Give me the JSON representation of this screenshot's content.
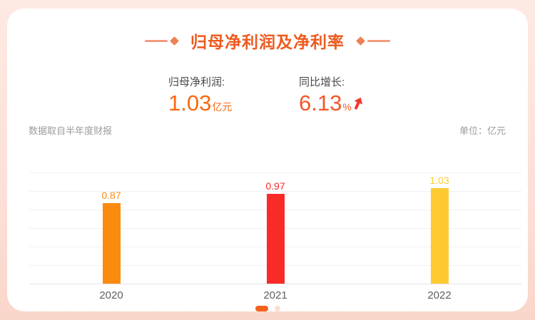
{
  "page": {
    "bg_top_color": "#fdeae3",
    "bg_bottom_color": "#f9d6ca",
    "card_color": "#ffffff"
  },
  "header": {
    "title": "归母净利润及净利率",
    "title_color": "#ee5a1e",
    "decoration_line_color": "#f29c7d",
    "decoration_diamond_color": "#ef7f55"
  },
  "stats": [
    {
      "label": "归母净利润:",
      "value": "1.03",
      "unit": "亿元",
      "value_color": "#f9690f"
    },
    {
      "label": "同比增长:",
      "value": "6.13",
      "unit": "%",
      "value_color": "#f4562a",
      "trend": "up",
      "arrow_color": "#f0382a"
    }
  ],
  "meta": {
    "source_note": "数据取自半年度财报",
    "unit_note": "单位：亿元"
  },
  "chart_data": {
    "type": "bar",
    "title": "归母净利润及净利率",
    "categories": [
      "2020",
      "2021",
      "2022"
    ],
    "values": [
      0.87,
      0.97,
      1.03
    ],
    "bar_colors": [
      "#fb8b0c",
      "#f92b26",
      "#fdca32"
    ],
    "value_label_colors": [
      "#fb8b0c",
      "#f92b26",
      "#fdca32"
    ],
    "xlabel": "",
    "ylabel": "亿元",
    "ylim": [
      0,
      1.2
    ],
    "gridline_step": 0.2,
    "grid": true,
    "legend": "none",
    "value_labels_shown": true
  },
  "pagination": {
    "active_index": 0,
    "dot_count": 2,
    "active_color": "#f2621b",
    "inactive_color": "#fcdfd2"
  }
}
